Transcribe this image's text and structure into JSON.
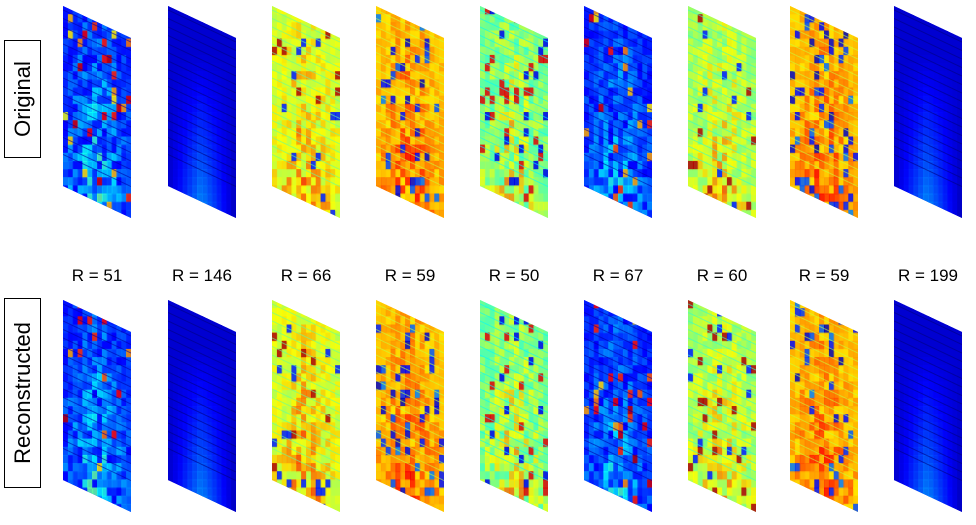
{
  "row_labels": {
    "original": "Original",
    "reconstructed": "Reconstructed"
  },
  "r_values": [
    "R = 51",
    "R = 146",
    "R = 66",
    "R = 59",
    "R = 50",
    "R = 67",
    "R = 60",
    "R = 59",
    "R = 199"
  ],
  "colormap": "jet",
  "volumes": [
    {
      "base": 0.12,
      "highlight": 0.55,
      "spots": "mixed-blue"
    },
    {
      "base": 0.08,
      "highlight": 0.35,
      "spots": "smooth"
    },
    {
      "base": 0.55,
      "highlight": 0.9,
      "spots": "mixed-yellow"
    },
    {
      "base": 0.65,
      "highlight": 0.95,
      "spots": "mixed-hot"
    },
    {
      "base": 0.45,
      "highlight": 0.85,
      "spots": "mixed-cyan"
    },
    {
      "base": 0.12,
      "highlight": 0.5,
      "spots": "mixed-blue"
    },
    {
      "base": 0.5,
      "highlight": 0.85,
      "spots": "mixed-yellow"
    },
    {
      "base": 0.65,
      "highlight": 0.95,
      "spots": "mixed-hot"
    },
    {
      "base": 0.08,
      "highlight": 0.35,
      "spots": "smooth"
    }
  ]
}
